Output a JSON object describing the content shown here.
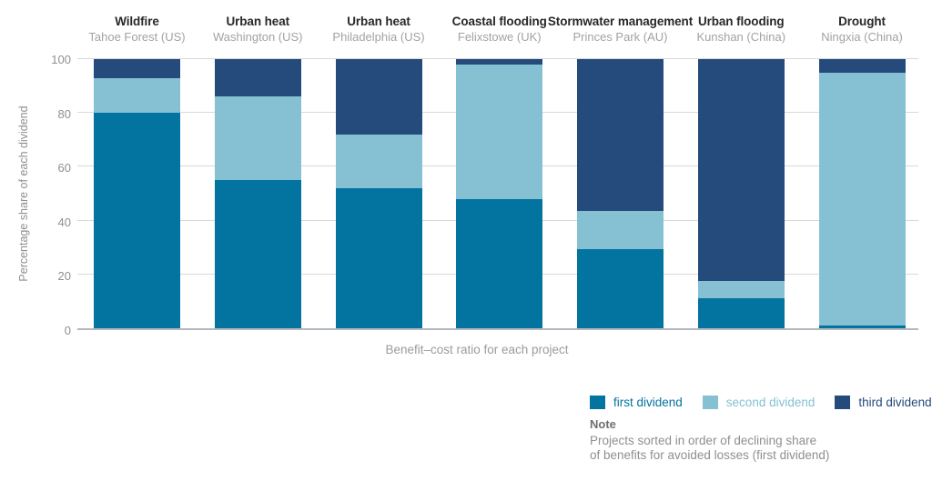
{
  "chart_data": {
    "type": "bar",
    "stacked": true,
    "title": "",
    "xlabel": "Benefit–cost ratio for each project",
    "ylabel": "Percentage share of each dividend",
    "ylim": [
      0,
      100
    ],
    "yticks": [
      0,
      20,
      40,
      60,
      80,
      100
    ],
    "grid": "horizontal",
    "legend_position": "bottom-right",
    "categories": [
      {
        "hazard": "Wildfire",
        "location": "Tahoe Forest (US)"
      },
      {
        "hazard": "Urban heat",
        "location": "Washington (US)"
      },
      {
        "hazard": "Urban heat",
        "location": "Philadelphia (US)"
      },
      {
        "hazard": "Coastal flooding",
        "location": "Felixstowe (UK)"
      },
      {
        "hazard": "Stormwater management",
        "location": "Princes Park (AU)"
      },
      {
        "hazard": "Urban flooding",
        "location": "Kunshan (China)"
      },
      {
        "hazard": "Drought",
        "location": "Ningxia (China)"
      }
    ],
    "series": [
      {
        "name": "first dividend",
        "color": "#0373a0",
        "values": [
          80,
          55,
          52,
          48,
          29.5,
          11,
          1
        ]
      },
      {
        "name": "second dividend",
        "color": "#85c1d3",
        "values": [
          13,
          31,
          20,
          50,
          14,
          6.5,
          94
        ]
      },
      {
        "name": "third dividend",
        "color": "#254a7c",
        "values": [
          7,
          14,
          28,
          2,
          56.5,
          82.5,
          5
        ]
      }
    ],
    "cumulative_tops_note": "per-bar cumulative boundaries: [80,93,100],[55,86,100],[52,72,100],[48,98,100],[29.5,43.5,100],[11,17.5,100],[1,95,100]"
  },
  "legend": {
    "items": [
      {
        "label": "first dividend",
        "color": "#0373a0"
      },
      {
        "label": "second dividend",
        "color": "#85c1d3"
      },
      {
        "label": "third dividend",
        "color": "#254a7c"
      }
    ]
  },
  "note": {
    "heading": "Note",
    "line1": "Projects sorted in order of declining share",
    "line2": "of benefits for avoided losses (first dividend)"
  },
  "style": {
    "gridline_color": "#d9d9d9",
    "baseline_color": "#b3b8be",
    "header_title_color": "#282828",
    "header_subtitle_color": "#a2a2a2",
    "axis_text_color": "#8f8f8f"
  }
}
